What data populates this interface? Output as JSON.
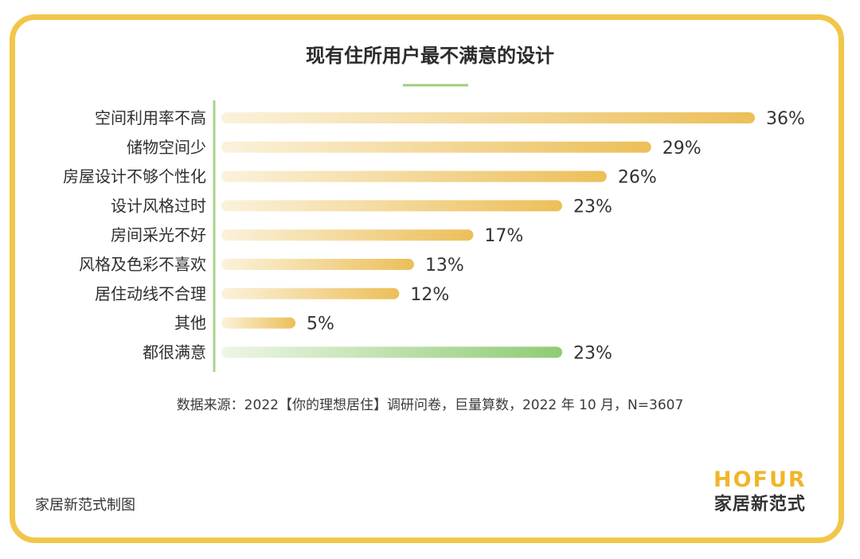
{
  "chart_data": {
    "type": "bar",
    "orientation": "horizontal",
    "title": "现有住所用户最不满意的设计",
    "categories": [
      "空间利用率不高",
      "储物空间少",
      "房屋设计不够个性化",
      "设计风格过时",
      "房间采光不好",
      "风格及色彩不喜欢",
      "居住动线不合理",
      "其他",
      "都很满意"
    ],
    "values": [
      36,
      29,
      26,
      23,
      17,
      13,
      12,
      5,
      23
    ],
    "value_labels": [
      "36%",
      "29%",
      "26%",
      "23%",
      "17%",
      "13%",
      "12%",
      "5%",
      "23%"
    ],
    "unit": "%",
    "xlim": [
      0,
      36
    ],
    "grid": false,
    "colors": {
      "bar_gradient_start": "#fbf2dc",
      "bar_gradient_end": "#ecbf58",
      "highlight_gradient_start": "#eef6e6",
      "highlight_gradient_end": "#8fcb75",
      "axis": "#a8d48a",
      "title_underline": "#9ccf7a"
    },
    "highlight_category": "都很满意"
  },
  "source": "数据来源：2022【你的理想居住】调研问卷，巨量算数，2022 年 10 月，N=3607",
  "credit": "家居新范式制图",
  "logo": {
    "english": "HOFUR",
    "chinese": "家居新范式"
  }
}
